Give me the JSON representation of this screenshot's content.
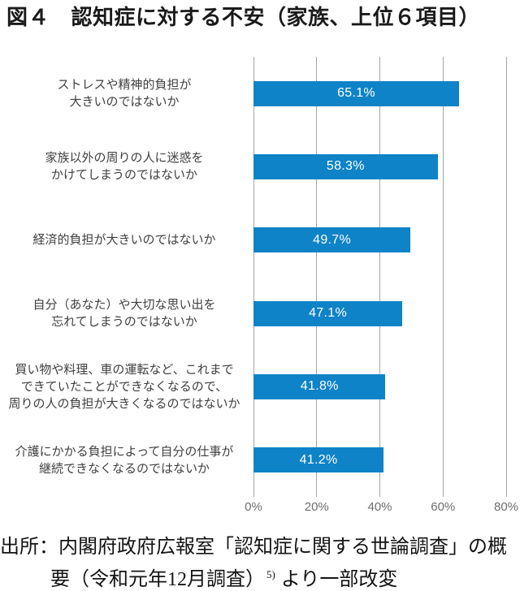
{
  "title": "図４　認知症に対する不安（家族、上位６項目）",
  "chart_data": {
    "type": "bar",
    "orientation": "horizontal",
    "title": "認知症に対する不安（家族、上位6項目）",
    "categories": [
      "ストレスや精神的負担が\n大きいのではないか",
      "家族以外の周りの人に迷惑を\nかけてしまうのではないか",
      "経済的負担が大きいのではないか",
      "自分（あなた）や大切な思い出を\n忘れてしまうのではないか",
      "買い物や料理、車の運転など、これまで\nできていたことができなくなるので、\n周りの人の負担が大きくなるのではないか",
      "介護にかかる負担によって自分の仕事が\n継続できなくなるのではないか"
    ],
    "values": [
      65.1,
      58.3,
      49.7,
      47.1,
      41.8,
      41.2
    ],
    "value_labels": [
      "65.1%",
      "58.3%",
      "49.7%",
      "47.1%",
      "41.8%",
      "41.2%"
    ],
    "xlabel": "",
    "ylabel": "",
    "xlim": [
      0,
      80
    ],
    "x_tick_values": [
      0,
      20,
      40,
      60,
      80
    ],
    "x_tick_labels": [
      "0%",
      "20%",
      "40%",
      "60%",
      "80%"
    ],
    "grid": true,
    "legend": false
  },
  "colors": {
    "bar": "#0f83c7",
    "gridline": "#a6a6a6",
    "axis_label": "#6e6e6e",
    "category_label": "#404040",
    "value_label": "#ffffff",
    "title_text": "#1a1a1a",
    "background": "#ffffff"
  },
  "source": {
    "line1": "出所：内閣府政府広報室「認知症に関する世論調査」の概",
    "line2_prefix": "要（令和元年12月調査）",
    "line2_superscript": "5)",
    "line2_suffix": "より一部改変"
  }
}
